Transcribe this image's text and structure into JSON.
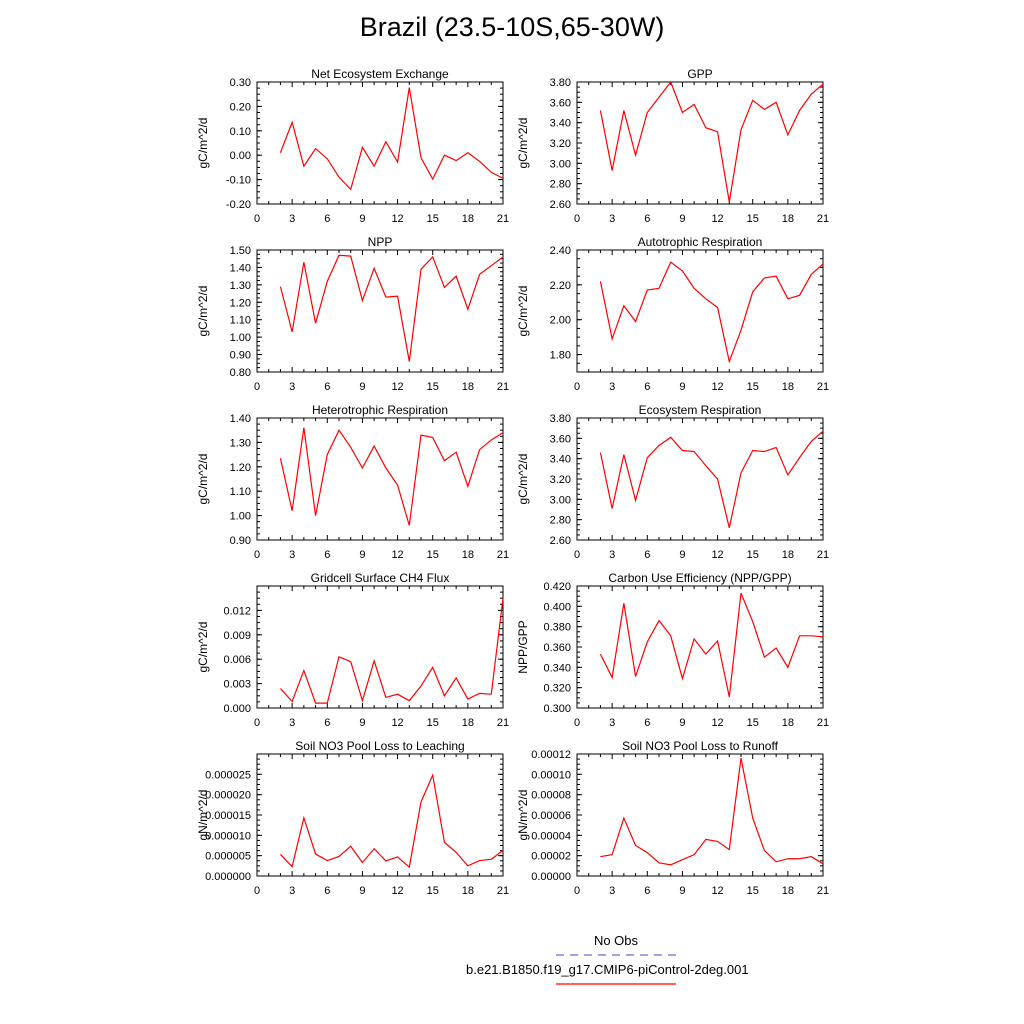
{
  "page": {
    "title": "Brazil (23.5-10S,65-30W)"
  },
  "colors": {
    "series": "#ff0000",
    "obs": "#6a6adf",
    "axis": "#000000"
  },
  "legend": {
    "obs_label": "No Obs",
    "model_label": "b.e21.B1850.f19_g17.CMIP6-piControl-2deg.001"
  },
  "chart_data": [
    {
      "type": "line",
      "title": "Net Ecosystem Exchange",
      "ylabel": "gC/m^2/d",
      "xlim": [
        0,
        21
      ],
      "ylim": [
        -0.2,
        0.3
      ],
      "xticks": [
        "0",
        "3",
        "6",
        "9",
        "12",
        "15",
        "18",
        "21"
      ],
      "yticks": [
        "-0.20",
        "-0.10",
        "0.00",
        "0.10",
        "0.20",
        "0.30"
      ],
      "ytick_values": [
        -0.2,
        -0.1,
        0.0,
        0.1,
        0.2,
        0.3
      ],
      "x": [
        2,
        3,
        4,
        5,
        6,
        7,
        8,
        9,
        10,
        11,
        12,
        13,
        14,
        15,
        16,
        17,
        18,
        19,
        20,
        21
      ],
      "series": [
        {
          "values": [
            0.01,
            0.135,
            -0.045,
            0.027,
            -0.015,
            -0.09,
            -0.14,
            0.032,
            -0.045,
            0.055,
            -0.028,
            0.277,
            -0.01,
            -0.098,
            0.0,
            -0.022,
            0.01,
            -0.025,
            -0.07,
            -0.095
          ]
        }
      ]
    },
    {
      "type": "line",
      "title": "GPP",
      "ylabel": "gC/m^2/d",
      "xlim": [
        0,
        21
      ],
      "ylim": [
        2.6,
        3.8
      ],
      "xticks": [
        "0",
        "3",
        "6",
        "9",
        "12",
        "15",
        "18",
        "21"
      ],
      "yticks": [
        "2.60",
        "2.80",
        "3.00",
        "3.20",
        "3.40",
        "3.60",
        "3.80"
      ],
      "ytick_values": [
        2.6,
        2.8,
        3.0,
        3.2,
        3.4,
        3.6,
        3.8
      ],
      "x": [
        2,
        3,
        4,
        5,
        6,
        7,
        8,
        9,
        10,
        11,
        12,
        13,
        14,
        15,
        16,
        17,
        18,
        19,
        20,
        21
      ],
      "series": [
        {
          "values": [
            3.52,
            2.93,
            3.52,
            3.08,
            3.5,
            3.65,
            3.8,
            3.5,
            3.58,
            3.35,
            3.31,
            2.62,
            3.33,
            3.62,
            3.53,
            3.6,
            3.28,
            3.52,
            3.68,
            3.78
          ]
        }
      ]
    },
    {
      "type": "line",
      "title": "NPP",
      "ylabel": "gC/m^2/d",
      "xlim": [
        0,
        21
      ],
      "ylim": [
        0.8,
        1.5
      ],
      "xticks": [
        "0",
        "3",
        "6",
        "9",
        "12",
        "15",
        "18",
        "21"
      ],
      "yticks": [
        "0.80",
        "0.90",
        "1.00",
        "1.10",
        "1.20",
        "1.30",
        "1.40",
        "1.50"
      ],
      "ytick_values": [
        0.8,
        0.9,
        1.0,
        1.1,
        1.2,
        1.3,
        1.4,
        1.5
      ],
      "x": [
        2,
        3,
        4,
        5,
        6,
        7,
        8,
        9,
        10,
        11,
        12,
        13,
        14,
        15,
        16,
        17,
        18,
        19,
        20,
        21
      ],
      "series": [
        {
          "values": [
            1.29,
            1.03,
            1.43,
            1.08,
            1.32,
            1.47,
            1.465,
            1.21,
            1.395,
            1.23,
            1.235,
            0.86,
            1.39,
            1.46,
            1.285,
            1.35,
            1.16,
            1.36,
            1.41,
            1.46
          ]
        }
      ]
    },
    {
      "type": "line",
      "title": "Autotrophic Respiration",
      "ylabel": "gC/m^2/d",
      "xlim": [
        0,
        21
      ],
      "ylim": [
        1.7,
        2.4
      ],
      "xticks": [
        "0",
        "3",
        "6",
        "9",
        "12",
        "15",
        "18",
        "21"
      ],
      "yticks": [
        "1.80",
        "2.00",
        "2.20",
        "2.40"
      ],
      "ytick_values": [
        1.8,
        2.0,
        2.2,
        2.4
      ],
      "x": [
        2,
        3,
        4,
        5,
        6,
        7,
        8,
        9,
        10,
        11,
        12,
        13,
        14,
        15,
        16,
        17,
        18,
        19,
        20,
        21
      ],
      "series": [
        {
          "values": [
            2.22,
            1.89,
            2.08,
            1.99,
            2.17,
            2.18,
            2.33,
            2.28,
            2.18,
            2.12,
            2.07,
            1.76,
            1.94,
            2.16,
            2.24,
            2.25,
            2.12,
            2.14,
            2.26,
            2.32
          ]
        }
      ]
    },
    {
      "type": "line",
      "title": "Heterotrophic Respiration",
      "ylabel": "gC/m^2/d",
      "xlim": [
        0,
        21
      ],
      "ylim": [
        0.9,
        1.4
      ],
      "xticks": [
        "0",
        "3",
        "6",
        "9",
        "12",
        "15",
        "18",
        "21"
      ],
      "yticks": [
        "0.90",
        "1.00",
        "1.10",
        "1.20",
        "1.30",
        "1.40"
      ],
      "ytick_values": [
        0.9,
        1.0,
        1.1,
        1.2,
        1.3,
        1.4
      ],
      "x": [
        2,
        3,
        4,
        5,
        6,
        7,
        8,
        9,
        10,
        11,
        12,
        13,
        14,
        15,
        16,
        17,
        18,
        19,
        20,
        21
      ],
      "series": [
        {
          "values": [
            1.235,
            1.02,
            1.36,
            1.0,
            1.25,
            1.35,
            1.28,
            1.195,
            1.285,
            1.195,
            1.125,
            0.96,
            1.33,
            1.32,
            1.225,
            1.26,
            1.12,
            1.27,
            1.31,
            1.34
          ]
        }
      ]
    },
    {
      "type": "line",
      "title": "Ecosystem Respiration",
      "ylabel": "gC/m^2/d",
      "xlim": [
        0,
        21
      ],
      "ylim": [
        2.6,
        3.8
      ],
      "xticks": [
        "0",
        "3",
        "6",
        "9",
        "12",
        "15",
        "18",
        "21"
      ],
      "yticks": [
        "2.60",
        "2.80",
        "3.00",
        "3.20",
        "3.40",
        "3.60",
        "3.80"
      ],
      "ytick_values": [
        2.6,
        2.8,
        3.0,
        3.2,
        3.4,
        3.6,
        3.8
      ],
      "x": [
        2,
        3,
        4,
        5,
        6,
        7,
        8,
        9,
        10,
        11,
        12,
        13,
        14,
        15,
        16,
        17,
        18,
        19,
        20,
        21
      ],
      "series": [
        {
          "values": [
            3.46,
            2.91,
            3.44,
            2.99,
            3.41,
            3.53,
            3.61,
            3.48,
            3.47,
            3.33,
            3.2,
            2.72,
            3.26,
            3.48,
            3.47,
            3.51,
            3.24,
            3.41,
            3.57,
            3.67
          ]
        }
      ]
    },
    {
      "type": "line",
      "title": "Gridcell Surface CH4 Flux",
      "ylabel": "gC/m^2/d",
      "xlim": [
        0,
        21
      ],
      "ylim": [
        0,
        0.015
      ],
      "xticks": [
        "0",
        "3",
        "6",
        "9",
        "12",
        "15",
        "18",
        "21"
      ],
      "yticks": [
        "0.000",
        "0.003",
        "0.006",
        "0.009",
        "0.012"
      ],
      "ytick_values": [
        0,
        0.003,
        0.006,
        0.009,
        0.012
      ],
      "x": [
        2,
        3,
        4,
        5,
        6,
        7,
        8,
        9,
        10,
        11,
        12,
        13,
        14,
        15,
        16,
        17,
        18,
        19,
        20,
        21
      ],
      "series": [
        {
          "values": [
            0.0024,
            0.0008,
            0.0046,
            0.0006,
            0.0006,
            0.0063,
            0.0057,
            0.0009,
            0.0058,
            0.0013,
            0.0017,
            0.0009,
            0.0027,
            0.005,
            0.0015,
            0.0037,
            0.0011,
            0.0018,
            0.0017,
            0.0135
          ]
        }
      ]
    },
    {
      "type": "line",
      "title": "Carbon Use Efficiency (NPP/GPP)",
      "ylabel": "NPP/GPP",
      "xlim": [
        0,
        21
      ],
      "ylim": [
        0.3,
        0.42
      ],
      "xticks": [
        "0",
        "3",
        "6",
        "9",
        "12",
        "15",
        "18",
        "21"
      ],
      "yticks": [
        "0.300",
        "0.320",
        "0.340",
        "0.360",
        "0.380",
        "0.400",
        "0.420"
      ],
      "ytick_values": [
        0.3,
        0.32,
        0.34,
        0.36,
        0.38,
        0.4,
        0.42
      ],
      "x": [
        2,
        3,
        4,
        5,
        6,
        7,
        8,
        9,
        10,
        11,
        12,
        13,
        14,
        15,
        16,
        17,
        18,
        19,
        20,
        21
      ],
      "series": [
        {
          "values": [
            0.353,
            0.33,
            0.403,
            0.331,
            0.365,
            0.386,
            0.371,
            0.329,
            0.368,
            0.353,
            0.366,
            0.311,
            0.413,
            0.385,
            0.35,
            0.359,
            0.34,
            0.371,
            0.371,
            0.37
          ]
        }
      ]
    },
    {
      "type": "line",
      "title": "Soil NO3 Pool Loss to Leaching",
      "ylabel": "gN/m^2/d",
      "xlim": [
        0,
        21
      ],
      "ylim": [
        0,
        3e-05
      ],
      "xticks": [
        "0",
        "3",
        "6",
        "9",
        "12",
        "15",
        "18",
        "21"
      ],
      "yticks": [
        "0.000000",
        "0.000005",
        "0.000010",
        "0.000015",
        "0.000020",
        "0.000025"
      ],
      "ytick_values": [
        0,
        5e-06,
        1e-05,
        1.5e-05,
        2e-05,
        2.5e-05
      ],
      "x": [
        2,
        3,
        4,
        5,
        6,
        7,
        8,
        9,
        10,
        11,
        12,
        13,
        14,
        15,
        16,
        17,
        18,
        19,
        20,
        21
      ],
      "series": [
        {
          "values": [
            5.3e-06,
            2.3e-06,
            1.43e-05,
            5.4e-06,
            3.8e-06,
            4.8e-06,
            7.3e-06,
            3.3e-06,
            6.7e-06,
            3.7e-06,
            4.7e-06,
            2.2e-06,
            1.82e-05,
            2.48e-05,
            8.3e-06,
            5.8e-06,
            2.5e-06,
            3.8e-06,
            4.1e-06,
            6.3e-06
          ]
        }
      ]
    },
    {
      "type": "line",
      "title": "Soil NO3 Pool Loss to Runoff",
      "ylabel": "gN/m^2/d",
      "xlim": [
        0,
        21
      ],
      "ylim": [
        0,
        0.00012
      ],
      "xticks": [
        "0",
        "3",
        "6",
        "9",
        "12",
        "15",
        "18",
        "21"
      ],
      "yticks": [
        "0.00000",
        "0.00002",
        "0.00004",
        "0.00006",
        "0.00008",
        "0.00010",
        "0.00012"
      ],
      "ytick_values": [
        0,
        2e-05,
        4e-05,
        6e-05,
        8e-05,
        0.0001,
        0.00012
      ],
      "x": [
        2,
        3,
        4,
        5,
        6,
        7,
        8,
        9,
        10,
        11,
        12,
        13,
        14,
        15,
        16,
        17,
        18,
        19,
        20,
        21
      ],
      "series": [
        {
          "values": [
            1.9e-05,
            2.1e-05,
            5.7e-05,
            3e-05,
            2.3e-05,
            1.3e-05,
            1.1e-05,
            1.6e-05,
            2.1e-05,
            3.6e-05,
            3.4e-05,
            2.6e-05,
            0.000116,
            5.7e-05,
            2.5e-05,
            1.4e-05,
            1.7e-05,
            1.7e-05,
            1.9e-05,
            1.2e-05
          ]
        }
      ]
    }
  ]
}
